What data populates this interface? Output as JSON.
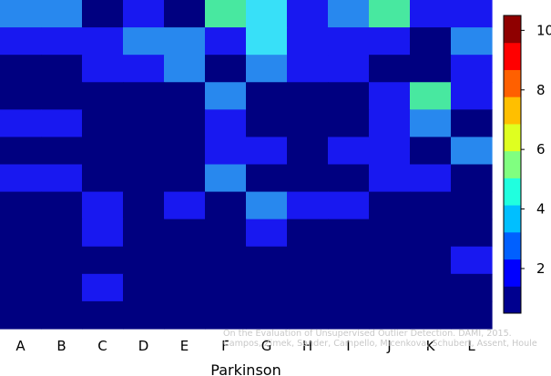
{
  "chart_data": {
    "type": "heatmap",
    "xlabel": "Parkinson",
    "x_categories": [
      "A",
      "B",
      "C",
      "D",
      "E",
      "F",
      "G",
      "H",
      "I",
      "J",
      "K",
      "L"
    ],
    "rows_from_top": [
      [
        3,
        3,
        1,
        2,
        1,
        5,
        4,
        2,
        3,
        5,
        2,
        2
      ],
      [
        2,
        2,
        2,
        3,
        3,
        2,
        4,
        2,
        2,
        2,
        1,
        3
      ],
      [
        1,
        1,
        2,
        2,
        3,
        1,
        3,
        2,
        2,
        1,
        1,
        2
      ],
      [
        1,
        1,
        1,
        1,
        1,
        3,
        1,
        1,
        1,
        2,
        5,
        2
      ],
      [
        2,
        2,
        1,
        1,
        1,
        2,
        1,
        1,
        1,
        2,
        3,
        1
      ],
      [
        1,
        1,
        1,
        1,
        1,
        2,
        2,
        1,
        2,
        2,
        1,
        3
      ],
      [
        2,
        2,
        1,
        1,
        1,
        3,
        1,
        1,
        1,
        2,
        2,
        1
      ],
      [
        1,
        1,
        2,
        1,
        2,
        1,
        3,
        2,
        2,
        1,
        1,
        1
      ],
      [
        1,
        1,
        2,
        1,
        1,
        1,
        2,
        1,
        1,
        1,
        1,
        1
      ],
      [
        1,
        1,
        1,
        1,
        1,
        1,
        1,
        1,
        1,
        1,
        1,
        2
      ],
      [
        1,
        1,
        2,
        1,
        1,
        1,
        1,
        1,
        1,
        1,
        1,
        1
      ],
      [
        1,
        1,
        1,
        1,
        1,
        1,
        1,
        1,
        1,
        1,
        1,
        1
      ]
    ],
    "color_scale": {
      "min": 0.5,
      "max": 10.5,
      "ticks": [
        "2",
        "4",
        "6",
        "8",
        "10"
      ],
      "tick_values": [
        2,
        4,
        6,
        8,
        10
      ],
      "colors": [
        "#00008f",
        "#0000ff",
        "#0060ff",
        "#00bfff",
        "#20ffdf",
        "#80ff80",
        "#dfff20",
        "#ffbf00",
        "#ff6000",
        "#ff0000",
        "#8f0000"
      ],
      "level_colors": {
        "1": "#000080",
        "2": "#1818f0",
        "3": "#2888ee",
        "4": "#38e0f8",
        "5": "#48e8a0"
      }
    },
    "legend": "right"
  },
  "watermark": {
    "line1": "On the Evaluation of Unsupervised Outlier Detection. DAMI, 2015.",
    "line2": "Campos, Zimek, Sander, Campello, Micenkova, Schubert, Assent, Houle"
  }
}
